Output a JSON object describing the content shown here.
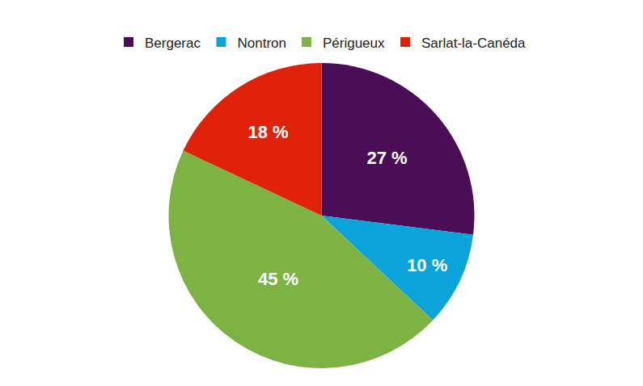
{
  "chart_data": {
    "type": "pie",
    "categories": [
      "Bergerac",
      "Nontron",
      "Périgueux",
      "Sarlat-la-Canéda"
    ],
    "values": [
      27,
      10,
      45,
      18
    ],
    "value_labels": [
      "27 %",
      "10 %",
      "45 %",
      "18 %"
    ],
    "colors": [
      "#4a0e57",
      "#0aa3da",
      "#7cb342",
      "#e0220b"
    ],
    "data_labels": true,
    "legend": "top"
  }
}
